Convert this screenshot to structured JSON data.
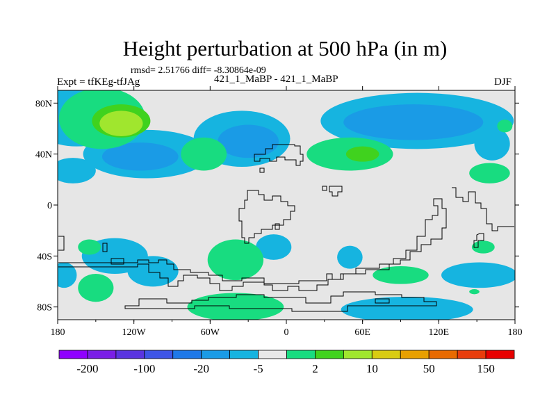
{
  "chart_data": {
    "type": "heatmap",
    "title": "Height perturbation at 500 hPa (in m)",
    "stats_line": "rmsd= 2.51766 diff= -8.30864e-09",
    "left_label": "Expt = tfKEg-tfJAg",
    "center_label": "421_1_MaBP - 421_1_MaBP",
    "right_label": "DJF",
    "x_tick_labels": [
      "180",
      "120W",
      "60W",
      "0",
      "60E",
      "120E",
      "180"
    ],
    "y_tick_labels": [
      "80N",
      "40N",
      "0",
      "40S",
      "80S"
    ],
    "xlim": [
      -180,
      180
    ],
    "ylim": [
      -90,
      90
    ],
    "colorbar": {
      "labels": [
        "-200",
        "-100",
        "-20",
        "-5",
        "2",
        "10",
        "50",
        "150"
      ],
      "colors": [
        "#8f00ff",
        "#7a1ee6",
        "#5a34e0",
        "#3e55e6",
        "#1e78e8",
        "#1a9be6",
        "#16b4e0",
        "#e8e8e8",
        "#18dc80",
        "#40d21e",
        "#a0e62e",
        "#d8cc12",
        "#e8a000",
        "#e86a00",
        "#e83c0c",
        "#e80000"
      ]
    },
    "fields": [
      {
        "level": -5,
        "color": "#16b4e0",
        "regions": [
          [
            -165,
            70,
            38,
            24
          ],
          [
            -110,
            40,
            50,
            19
          ],
          [
            -35,
            52,
            38,
            22
          ],
          [
            103,
            66,
            76,
            22
          ],
          [
            162,
            48,
            14,
            13
          ],
          [
            -168,
            27,
            18,
            10
          ],
          [
            -10,
            -33,
            14,
            10
          ],
          [
            50,
            -41,
            10,
            9
          ],
          [
            -135,
            -40,
            26,
            14
          ],
          [
            -105,
            -52,
            20,
            12
          ],
          [
            95,
            -82,
            52,
            10
          ],
          [
            152,
            -55,
            30,
            10
          ],
          [
            -175,
            -55,
            10,
            10
          ]
        ]
      },
      {
        "level": -20,
        "color": "#1a9be6",
        "regions": [
          [
            -115,
            38,
            30,
            11
          ],
          [
            -30,
            50,
            24,
            13
          ],
          [
            100,
            65,
            55,
            14
          ]
        ]
      },
      {
        "level": 2,
        "color": "#18dc80",
        "regions": [
          [
            -145,
            68,
            34,
            24
          ],
          [
            -65,
            40,
            18,
            13
          ],
          [
            50,
            40,
            34,
            13
          ],
          [
            160,
            25,
            16,
            8
          ],
          [
            -40,
            -43,
            22,
            16
          ],
          [
            -40,
            -80,
            38,
            11
          ],
          [
            -150,
            -65,
            14,
            11
          ],
          [
            -155,
            -33,
            9,
            6
          ],
          [
            90,
            -55,
            22,
            7
          ],
          [
            155,
            -33,
            9,
            5
          ],
          [
            172,
            62,
            6,
            5
          ],
          [
            148,
            -68,
            4,
            2
          ]
        ]
      },
      {
        "level": 10,
        "color": "#40d21e",
        "regions": [
          [
            -130,
            66,
            23,
            13
          ],
          [
            60,
            40,
            13,
            6
          ]
        ]
      },
      {
        "level": 50,
        "color": "#a0e62e",
        "regions": [
          [
            -130,
            64,
            17,
            10
          ]
        ]
      }
    ]
  }
}
